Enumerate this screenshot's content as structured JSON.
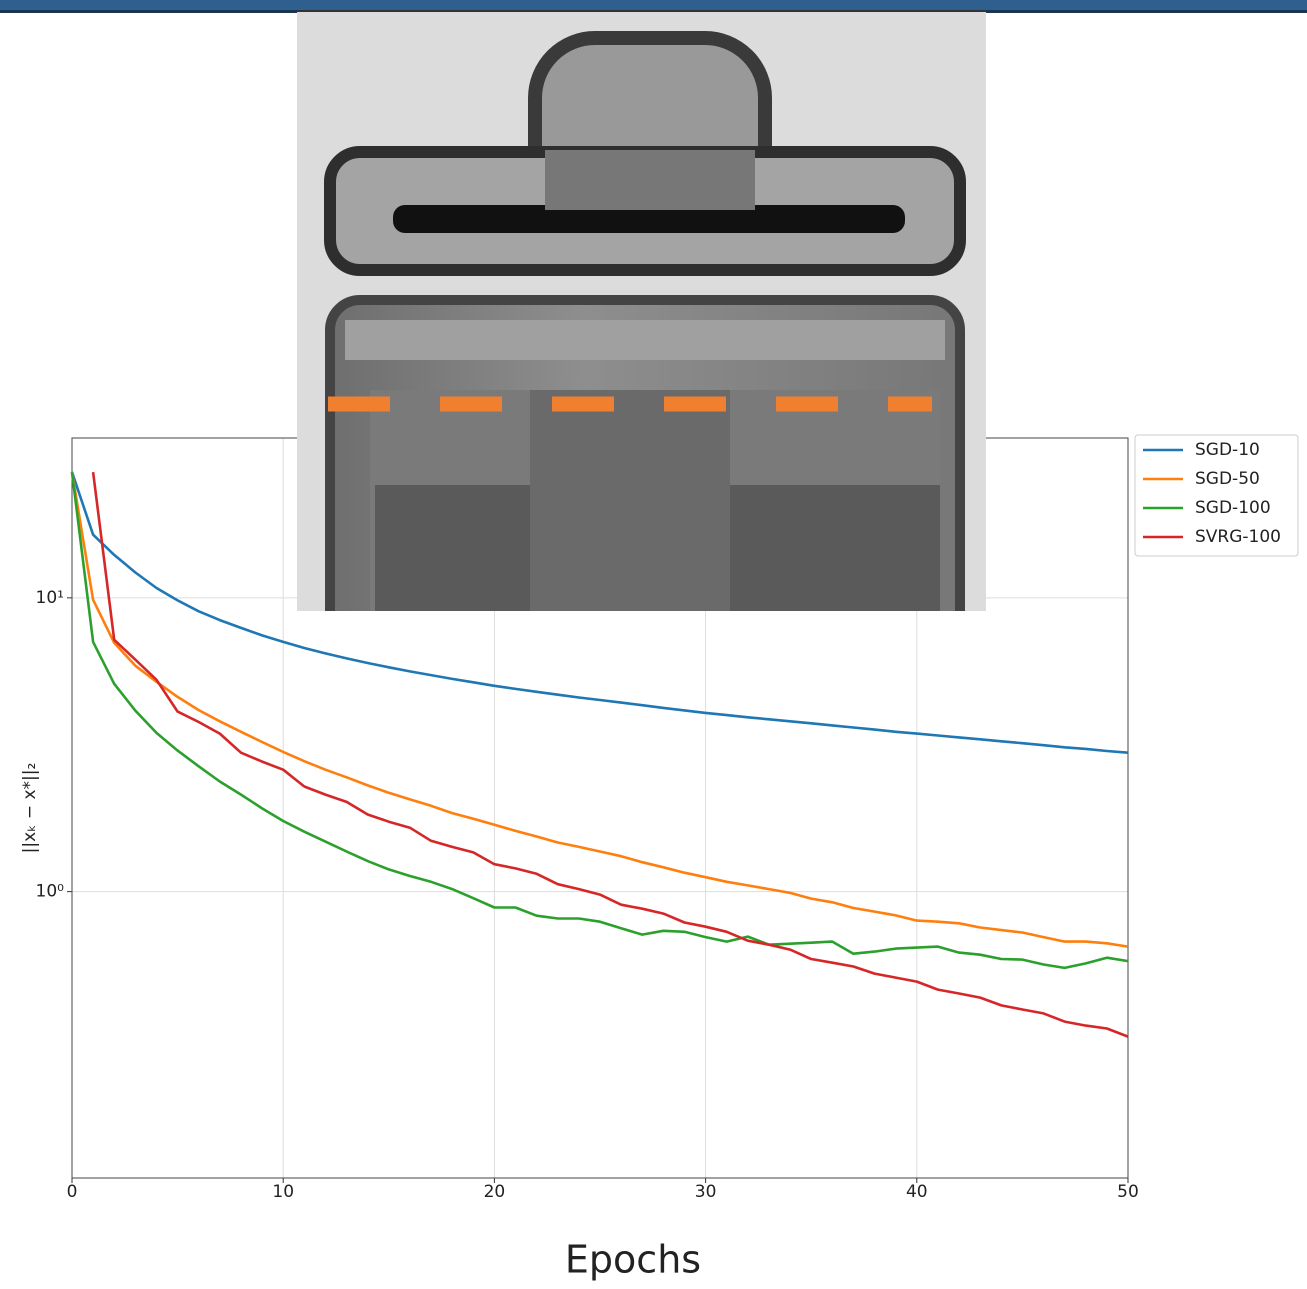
{
  "chart_data": {
    "type": "line",
    "xlabel": "Epochs",
    "ylabel": "||xₖ − x*||₂",
    "xlim": [
      0,
      50
    ],
    "xticks": [
      0,
      10,
      20,
      30,
      40,
      50
    ],
    "ylim": [
      0.106,
      35
    ],
    "yscale": "log",
    "yticks": [
      {
        "value": 10,
        "label": "10¹"
      },
      {
        "value": 1,
        "label": "10⁰"
      }
    ],
    "grid": true,
    "legend": "outside upper right",
    "x": [
      0,
      1,
      2,
      3,
      4,
      5,
      6,
      7,
      8,
      9,
      10,
      11,
      12,
      13,
      14,
      15,
      16,
      17,
      18,
      19,
      20,
      21,
      22,
      23,
      24,
      25,
      26,
      27,
      28,
      29,
      30,
      31,
      32,
      33,
      34,
      35,
      36,
      37,
      38,
      39,
      40,
      41,
      42,
      43,
      44,
      45,
      46,
      47,
      48,
      49,
      50
    ],
    "series": [
      {
        "name": "SGD-10",
        "color": "#1f77b4",
        "values": [
          26.8,
          16.4,
          14.0,
          12.2,
          10.8,
          9.8,
          9.0,
          8.4,
          7.9,
          7.45,
          7.08,
          6.75,
          6.47,
          6.22,
          6.0,
          5.8,
          5.62,
          5.46,
          5.3,
          5.16,
          5.02,
          4.9,
          4.79,
          4.68,
          4.58,
          4.49,
          4.4,
          4.31,
          4.22,
          4.14,
          4.06,
          3.99,
          3.92,
          3.86,
          3.8,
          3.74,
          3.68,
          3.62,
          3.56,
          3.5,
          3.45,
          3.4,
          3.35,
          3.3,
          3.25,
          3.2,
          3.15,
          3.1,
          3.06,
          3.01,
          2.97
        ]
      },
      {
        "name": "SGD-50",
        "color": "#ff7f0e",
        "values": [
          26.8,
          9.85,
          7.03,
          5.87,
          5.18,
          4.6,
          4.15,
          3.8,
          3.5,
          3.23,
          2.99,
          2.78,
          2.6,
          2.45,
          2.3,
          2.17,
          2.06,
          1.96,
          1.85,
          1.77,
          1.69,
          1.61,
          1.54,
          1.47,
          1.42,
          1.37,
          1.32,
          1.26,
          1.21,
          1.16,
          1.12,
          1.08,
          1.05,
          1.02,
          0.99,
          0.947,
          0.92,
          0.88,
          0.855,
          0.83,
          0.797,
          0.79,
          0.78,
          0.755,
          0.74,
          0.726,
          0.7,
          0.676,
          0.676,
          0.667,
          0.65
        ]
      },
      {
        "name": "SGD-100",
        "color": "#2ca02c",
        "values": [
          26.8,
          7.08,
          5.1,
          4.13,
          3.47,
          3.02,
          2.67,
          2.37,
          2.14,
          1.92,
          1.74,
          1.6,
          1.48,
          1.37,
          1.27,
          1.19,
          1.13,
          1.08,
          1.02,
          0.95,
          0.883,
          0.883,
          0.828,
          0.81,
          0.81,
          0.79,
          0.75,
          0.714,
          0.736,
          0.73,
          0.7,
          0.676,
          0.703,
          0.66,
          0.665,
          0.67,
          0.676,
          0.615,
          0.625,
          0.64,
          0.645,
          0.65,
          0.62,
          0.61,
          0.59,
          0.587,
          0.565,
          0.55,
          0.57,
          0.596,
          0.58
        ]
      },
      {
        "name": "SVRG-100",
        "color": "#d62728",
        "values": [
          null,
          26.8,
          7.2,
          6.16,
          5.26,
          4.1,
          3.78,
          3.45,
          2.97,
          2.77,
          2.6,
          2.28,
          2.14,
          2.02,
          1.83,
          1.73,
          1.65,
          1.49,
          1.42,
          1.36,
          1.24,
          1.2,
          1.15,
          1.06,
          1.02,
          0.977,
          0.903,
          0.875,
          0.842,
          0.785,
          0.76,
          0.73,
          0.681,
          0.66,
          0.635,
          0.59,
          0.573,
          0.556,
          0.526,
          0.51,
          0.494,
          0.464,
          0.45,
          0.436,
          0.41,
          0.397,
          0.385,
          0.361,
          0.35,
          0.342,
          0.321
        ]
      }
    ]
  }
}
